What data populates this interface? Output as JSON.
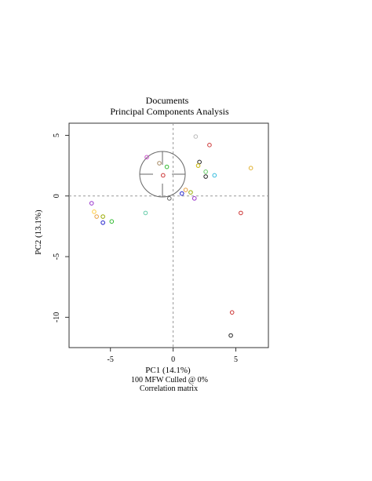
{
  "chart_data": {
    "type": "scatter",
    "title": "Documents",
    "subtitle": "Principal Components Analysis",
    "xlabel": "PC1 (14.1%)",
    "ylabel": "PC2 (13.1%)",
    "footer_lines": [
      "100 MFW  Culled @ 0%",
      "Correlation matrix"
    ],
    "xlim": [
      -8.3,
      7.6
    ],
    "ylim": [
      -12.5,
      6.0
    ],
    "x_ticks": [
      -5,
      0,
      5
    ],
    "y_ticks": [
      5,
      0,
      -5,
      -10
    ],
    "grid": false,
    "reference_lines": {
      "x": 0,
      "y": 0
    },
    "points": [
      {
        "x": 1.8,
        "y": 4.9,
        "color": "#bbbbbb"
      },
      {
        "x": 2.9,
        "y": 4.2,
        "color": "#cc3333"
      },
      {
        "x": -2.1,
        "y": 3.2,
        "color": "#cc55cc"
      },
      {
        "x": -1.1,
        "y": 2.7,
        "color": "#a68a64"
      },
      {
        "x": -0.5,
        "y": 2.4,
        "color": "#33bb33"
      },
      {
        "x": 2.1,
        "y": 2.8,
        "color": "#222222"
      },
      {
        "x": 2.0,
        "y": 2.5,
        "color": "#c8b400"
      },
      {
        "x": 2.6,
        "y": 2.0,
        "color": "#66cc66"
      },
      {
        "x": 6.2,
        "y": 2.3,
        "color": "#e0b030"
      },
      {
        "x": -0.8,
        "y": 1.7,
        "color": "#cc3333"
      },
      {
        "x": 2.6,
        "y": 1.6,
        "color": "#222222"
      },
      {
        "x": 3.3,
        "y": 1.7,
        "color": "#33bbdd"
      },
      {
        "x": 0.7,
        "y": 0.2,
        "color": "#2222cc"
      },
      {
        "x": 1.4,
        "y": 0.3,
        "color": "#99aa00"
      },
      {
        "x": 1.0,
        "y": 0.5,
        "color": "#e8a040"
      },
      {
        "x": 1.7,
        "y": -0.2,
        "color": "#9933cc"
      },
      {
        "x": -0.3,
        "y": -0.2,
        "color": "#666666"
      },
      {
        "x": -2.2,
        "y": -1.4,
        "color": "#66ccaa"
      },
      {
        "x": 5.4,
        "y": -1.4,
        "color": "#cc3333"
      },
      {
        "x": -6.5,
        "y": -0.6,
        "color": "#9933cc"
      },
      {
        "x": -6.3,
        "y": -1.3,
        "color": "#ffcc44"
      },
      {
        "x": -6.1,
        "y": -1.7,
        "color": "#e8a040"
      },
      {
        "x": -5.6,
        "y": -1.7,
        "color": "#99aa00"
      },
      {
        "x": -4.9,
        "y": -2.1,
        "color": "#33bb33"
      },
      {
        "x": -5.6,
        "y": -2.2,
        "color": "#2222cc"
      },
      {
        "x": 4.7,
        "y": -9.6,
        "color": "#cc3333"
      },
      {
        "x": 4.6,
        "y": -11.5,
        "color": "#222222"
      }
    ]
  }
}
